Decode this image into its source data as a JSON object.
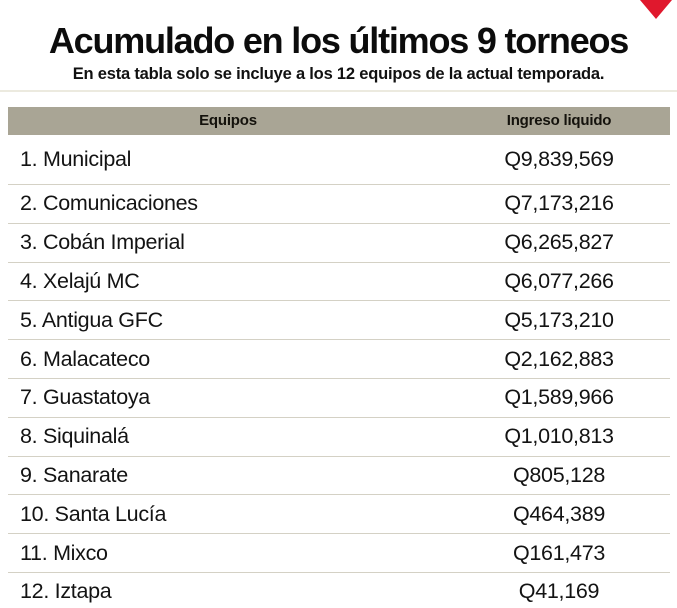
{
  "header": {
    "title": "Acumulado en los últimos 9 torneos",
    "subtitle": "En esta tabla solo se incluye a los 12 equipos de la actual temporada."
  },
  "table": {
    "columns": [
      "Equipos",
      "Ingreso liquido"
    ],
    "rows": [
      {
        "label": "1. Municipal",
        "value": "Q9,839,569"
      },
      {
        "label": "2. Comunicaciones",
        "value": "Q7,173,216"
      },
      {
        "label": "3. Cobán Imperial",
        "value": "Q6,265,827"
      },
      {
        "label": "4. Xelajú MC",
        "value": "Q6,077,266"
      },
      {
        "label": "5. Antigua GFC",
        "value": "Q5,173,210"
      },
      {
        "label": "6. Malacateco",
        "value": "Q2,162,883"
      },
      {
        "label": "7. Guastatoya",
        "value": "Q1,589,966"
      },
      {
        "label": "8. Siquinalá",
        "value": "Q1,010,813"
      },
      {
        "label": "9. Sanarate",
        "value": "Q805,128"
      },
      {
        "label": "10. Santa Lucía",
        "value": "Q464,389"
      },
      {
        "label": "11. Mixco",
        "value": "Q161,473"
      },
      {
        "label": "12. Iztapa",
        "value": "Q41,169"
      }
    ]
  },
  "colors": {
    "header_bg": "#a9a595",
    "row_divider": "#d4d1c5",
    "bottom_rule": "#c6c0a9",
    "accent_red": "#e0182d",
    "text": "#131313"
  },
  "icons": {
    "corner_triangle": "red-down-triangle"
  },
  "chart_data": {
    "type": "table",
    "title": "Acumulado en los últimos 9 torneos",
    "subtitle": "En esta tabla solo se incluye a los 12 equipos de la actual temporada.",
    "columns": [
      "Equipos",
      "Ingreso liquido"
    ],
    "categories": [
      "Municipal",
      "Comunicaciones",
      "Cobán Imperial",
      "Xelajú MC",
      "Antigua GFC",
      "Malacateco",
      "Guastatoya",
      "Siquinalá",
      "Sanarate",
      "Santa Lucía",
      "Mixco",
      "Iztapa"
    ],
    "values": [
      9839569,
      7173216,
      6265827,
      6077266,
      5173210,
      2162883,
      1589966,
      1010813,
      805128,
      464389,
      161473,
      41169
    ],
    "currency": "Q",
    "value_format": "Q#,###,###"
  }
}
